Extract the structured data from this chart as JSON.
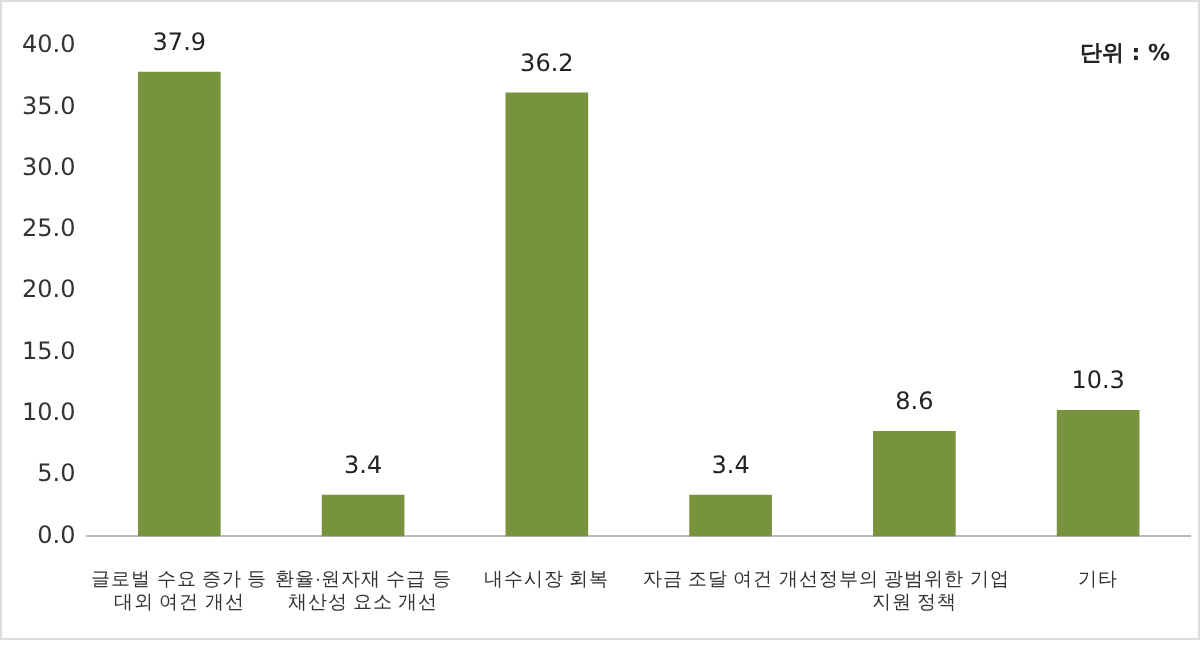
{
  "chart_data": {
    "type": "bar",
    "categories": [
      "글로벌 수요 증가 등\n대외 여건 개선",
      "환율·원자재 수급 등\n채산성 요소 개선",
      "내수시장 회복",
      "자금 조달 여건 개선",
      "정부의 광범위한 기업\n지원 정책",
      "기타"
    ],
    "values": [
      37.9,
      3.4,
      36.2,
      3.4,
      8.6,
      10.3
    ],
    "color": "#77933c",
    "data_labels": true,
    "ylim": [
      0,
      40
    ],
    "yticks": [
      {
        "value": 0,
        "label": "0.0"
      },
      {
        "value": 5,
        "label": "5.0"
      },
      {
        "value": 10,
        "label": "10.0"
      },
      {
        "value": 15,
        "label": "15.0"
      },
      {
        "value": 20,
        "label": "20.0"
      },
      {
        "value": 25,
        "label": "25.0"
      },
      {
        "value": 30,
        "label": "30.0"
      },
      {
        "value": 35,
        "label": "35.0"
      },
      {
        "value": 40,
        "label": "40.0"
      }
    ],
    "annotations": [
      "단위 : %"
    ]
  }
}
